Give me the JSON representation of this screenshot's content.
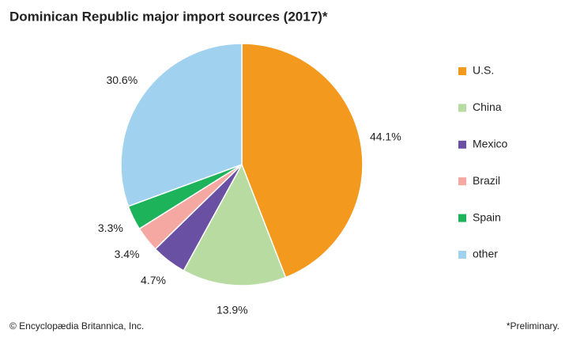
{
  "chart_data": {
    "type": "pie",
    "title": "Dominican Republic major import sources (2017)*",
    "categories": [
      "U.S.",
      "China",
      "Mexico",
      "Brazil",
      "Spain",
      "other"
    ],
    "values": [
      44.1,
      13.9,
      4.7,
      3.4,
      3.3,
      30.6
    ],
    "value_labels": [
      "44.1%",
      "13.9%",
      "4.7%",
      "3.4%",
      "3.3%",
      "30.6%"
    ],
    "colors": [
      "#f39a1e",
      "#b7dba0",
      "#6a50a3",
      "#f5a8a2",
      "#1db35a",
      "#a0d2f0"
    ],
    "source": "© Encyclopædia Britannica, Inc.",
    "note": "*Preliminary."
  }
}
